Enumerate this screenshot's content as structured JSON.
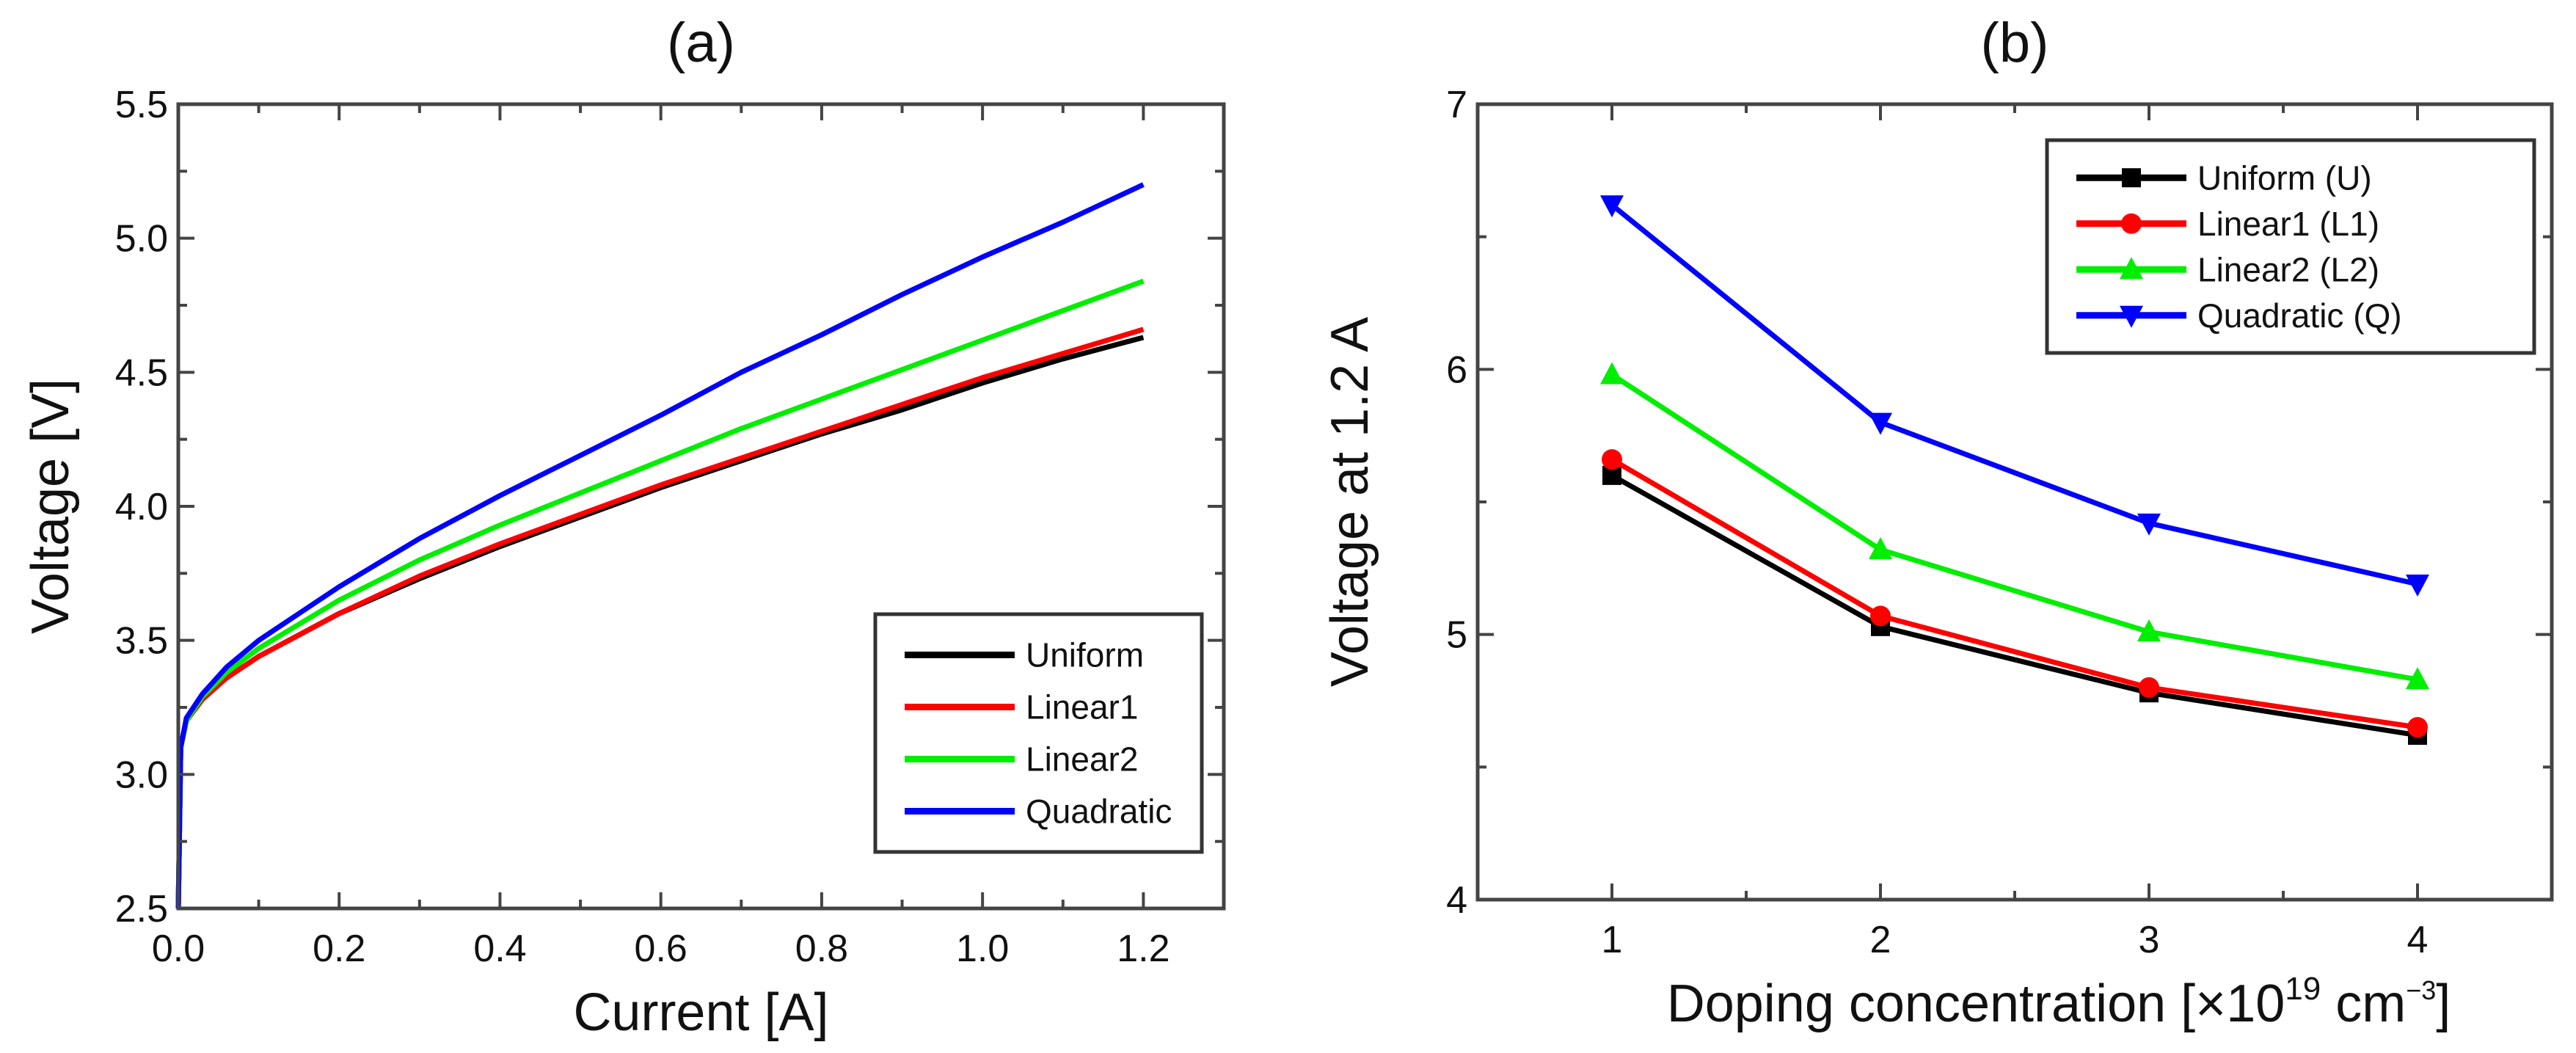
{
  "chart_data": [
    {
      "type": "line",
      "title": "(a)",
      "xlabel": "Current [A]",
      "ylabel": "Voltage [V]",
      "xlim": [
        0,
        1.3
      ],
      "ylim": [
        2.5,
        5.5
      ],
      "xticks": [
        "0.0",
        "0.2",
        "0.4",
        "0.6",
        "0.8",
        "1.0",
        "1.2"
      ],
      "yticks": [
        "2.5",
        "3.0",
        "3.5",
        "4.0",
        "4.5",
        "5.0",
        "5.5"
      ],
      "legend": "bottom-right",
      "grid": false,
      "x": [
        0,
        0.003,
        0.01,
        0.03,
        0.06,
        0.1,
        0.15,
        0.2,
        0.3,
        0.4,
        0.5,
        0.6,
        0.7,
        0.8,
        0.9,
        1.0,
        1.1,
        1.2
      ],
      "series": [
        {
          "name": "Uniform",
          "color": "#000000",
          "values": [
            2.5,
            3.1,
            3.2,
            3.28,
            3.36,
            3.44,
            3.52,
            3.6,
            3.73,
            3.85,
            3.96,
            4.07,
            4.17,
            4.27,
            4.36,
            4.46,
            4.55,
            4.63
          ]
        },
        {
          "name": "Linear1",
          "color": "#ff0000",
          "values": [
            2.5,
            3.1,
            3.2,
            3.28,
            3.36,
            3.44,
            3.52,
            3.6,
            3.74,
            3.86,
            3.97,
            4.08,
            4.18,
            4.28,
            4.38,
            4.48,
            4.57,
            4.66
          ]
        },
        {
          "name": "Linear2",
          "color": "#00ee00",
          "values": [
            2.5,
            3.1,
            3.2,
            3.29,
            3.38,
            3.47,
            3.56,
            3.65,
            3.8,
            3.93,
            4.05,
            4.17,
            4.29,
            4.4,
            4.51,
            4.62,
            4.73,
            4.84
          ]
        },
        {
          "name": "Quadratic",
          "color": "#0000ff",
          "values": [
            2.5,
            3.1,
            3.21,
            3.3,
            3.4,
            3.5,
            3.6,
            3.7,
            3.88,
            4.04,
            4.19,
            4.34,
            4.5,
            4.64,
            4.79,
            4.93,
            5.06,
            5.2
          ]
        }
      ]
    },
    {
      "type": "line",
      "title": "(b)",
      "xlabel": "Doping concentration [×10",
      "xlabel_sup1": "19",
      "xlabel_mid": " cm",
      "xlabel_sup2": "−3",
      "xlabel_end": "]",
      "ylabel": "Voltage at 1.2 A",
      "xlim": [
        0.5,
        4.5
      ],
      "ylim": [
        4,
        7
      ],
      "xticks": [
        "1",
        "2",
        "3",
        "4"
      ],
      "yticks": [
        "4",
        "5",
        "6",
        "7"
      ],
      "legend": "top-right",
      "grid": false,
      "x": [
        1,
        2,
        3,
        4
      ],
      "series": [
        {
          "name": "Uniform (U)",
          "color": "#000000",
          "marker": "square",
          "values": [
            5.6,
            5.03,
            4.78,
            4.62
          ]
        },
        {
          "name": "Linear1 (L1)",
          "color": "#ff0000",
          "marker": "circle",
          "values": [
            5.66,
            5.07,
            4.8,
            4.65
          ]
        },
        {
          "name": "Linear2 (L2)",
          "color": "#00ee00",
          "marker": "triangle-up",
          "values": [
            5.98,
            5.32,
            5.01,
            4.83
          ]
        },
        {
          "name": "Quadratic (Q)",
          "color": "#0000ff",
          "marker": "triangle-down",
          "values": [
            6.62,
            5.8,
            5.42,
            5.19
          ]
        }
      ]
    }
  ]
}
